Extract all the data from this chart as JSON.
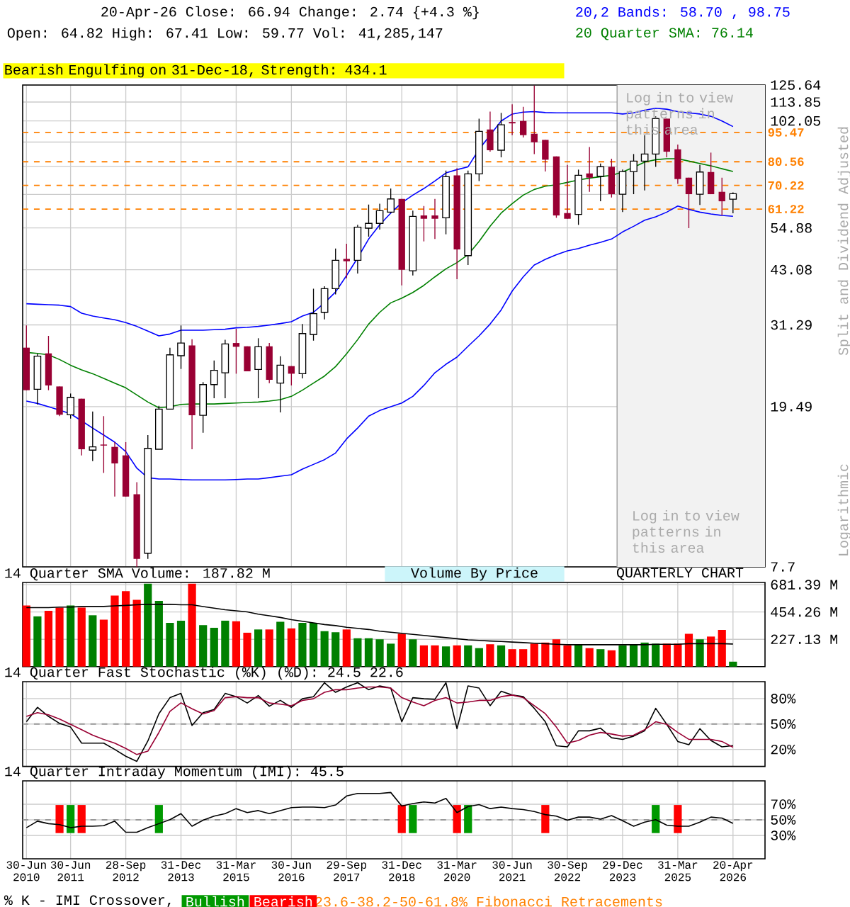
{
  "chart_data": [
    {
      "type": "candlestick",
      "title": "20-Apr-26  Close: 66.94  Change: 2.74 {+4.3 %}",
      "subtitle": "Open: 64.82  High: 67.41  Low: 59.77  Vol: 41,285,147",
      "ylabel": "Split and Dividend Adjusted",
      "annotations": [
        "Bearish Engulfing on 31-Dec-18, Strength: 434.1",
        "Log in to view patterns in this area",
        "Logarithmic",
        "Volume By Price",
        "QUARTERLY CHART",
        "23.6-38.2-50-61.8% Fibonacci Retracements"
      ],
      "categories": [
        "30-Jun 2010",
        null,
        null,
        null,
        "30-Jun 2011",
        null,
        null,
        null,
        null,
        "28-Sep 2012",
        null,
        null,
        null,
        null,
        "31-Dec 2013",
        null,
        null,
        null,
        null,
        "31-Mar 2015",
        null,
        null,
        null,
        null,
        "30-Jun 2016",
        null,
        null,
        null,
        null,
        "29-Sep 2017",
        null,
        null,
        null,
        null,
        "31-Dec 2018",
        null,
        null,
        null,
        null,
        "31-Mar 2020",
        null,
        null,
        null,
        null,
        "30-Jun 2021",
        null,
        null,
        null,
        null,
        "30-Sep 2022",
        null,
        null,
        null,
        null,
        "29-Dec 2023",
        null,
        null,
        null,
        null,
        "31-Mar 2025",
        null,
        null,
        null,
        null,
        "20-Apr 2026"
      ],
      "ohlc": [
        [
          27.42,
          31.18,
          21.43,
          21.43
        ],
        [
          21.55,
          26.46,
          19.74,
          26.1
        ],
        [
          26.53,
          29.36,
          21.43,
          22.03
        ],
        [
          21.9,
          21.9,
          18.44,
          18.59
        ],
        [
          18.59,
          21.02,
          18.18,
          20.56
        ],
        [
          20.4,
          20.4,
          14.69,
          15.22
        ],
        [
          15.14,
          18.94,
          14.21,
          15.43
        ],
        [
          15.64,
          18.44,
          13.27,
          15.55
        ],
        [
          15.43,
          15.86,
          11.57,
          14.02
        ],
        [
          14.69,
          15.86,
          11.57,
          11.57
        ],
        [
          11.73,
          12.57,
          7.7,
          8.06
        ],
        [
          8.33,
          16.52,
          8.06,
          15.3
        ],
        [
          15.22,
          19.58,
          15.22,
          19.21
        ],
        [
          19.21,
          27.42,
          19.21,
          26.31
        ],
        [
          26.17,
          31.18,
          24.24,
          28.17
        ],
        [
          27.79,
          28.8,
          15.22,
          18.53
        ],
        [
          18.53,
          22.45,
          16.75,
          22.14
        ],
        [
          22.14,
          25.46,
          20.46,
          24.04
        ],
        [
          23.71,
          28.72,
          20.46,
          28.02
        ],
        [
          28.17,
          30.59,
          23.58,
          27.56
        ],
        [
          27.64,
          27.64,
          23.91,
          23.91
        ],
        [
          24.17,
          28.96,
          20.46,
          27.56
        ],
        [
          27.64,
          28.17,
          22.33,
          22.76
        ],
        [
          22.33,
          26.1,
          18.84,
          24.77
        ],
        [
          24.64,
          24.64,
          22.03,
          23.58
        ],
        [
          23.58,
          31.44,
          22.95,
          29.76
        ],
        [
          29.6,
          38.59,
          28.56,
          33.39
        ],
        [
          33.66,
          39.13,
          32.31,
          38.59
        ],
        [
          38.59,
          48.71,
          37.35,
          45.49
        ],
        [
          45.87,
          50.07,
          40.99,
          45.25
        ],
        [
          45.49,
          55.87,
          42.13,
          55.11
        ],
        [
          54.81,
          62.84,
          52.17,
          56.34
        ],
        [
          56.34,
          63.18,
          54.36,
          60.65
        ],
        [
          60.15,
          68.97,
          59.82,
          64.94
        ],
        [
          64.94,
          64.94,
          39.35,
          43.06
        ],
        [
          42.82,
          60.65,
          41.67,
          58.68
        ],
        [
          59.0,
          62.32,
          50.76,
          57.88
        ],
        [
          59.0,
          64.94,
          51.46,
          57.88
        ],
        [
          58.2,
          76.53,
          52.89,
          73.86
        ],
        [
          74.46,
          77.58,
          40.77,
          48.44
        ],
        [
          46.75,
          76.53,
          44.26,
          75.07
        ],
        [
          75.07,
          103.4,
          72.05,
          96.04
        ],
        [
          97.1,
          107.7,
          85.38,
          86.09
        ],
        [
          86.09,
          106.9,
          82.62,
          99.79
        ],
        [
          101.4,
          112.3,
          93.96,
          100.6
        ],
        [
          102.0,
          110.7,
          92.69,
          93.96
        ],
        [
          94.74,
          125.3,
          84.22,
          90.18
        ],
        [
          91.42,
          91.42,
          76.11,
          81.5
        ],
        [
          83.07,
          83.07,
          58.2,
          59.0
        ],
        [
          59.82,
          79.08,
          57.88,
          57.88
        ],
        [
          59.33,
          76.95,
          55.87,
          74.46
        ],
        [
          75.27,
          87.75,
          67.66,
          73.45
        ],
        [
          74.05,
          79.73,
          64.05,
          78.21
        ],
        [
          78.21,
          81.95,
          65.47,
          66.74
        ],
        [
          66.74,
          76.95,
          60.15,
          76.11
        ],
        [
          76.11,
          84.22,
          66.74,
          80.83
        ],
        [
          80.83,
          93.96,
          68.21,
          84.22
        ],
        [
          84.22,
          104.8,
          78.21,
          103.4
        ],
        [
          103.4,
          103.4,
          82.62,
          85.38
        ],
        [
          86.55,
          88.96,
          70.88,
          72.85
        ],
        [
          73.45,
          73.45,
          54.81,
          66.74
        ],
        [
          66.74,
          79.08,
          62.67,
          75.89
        ],
        [
          75.89,
          84.92,
          66.74,
          66.74
        ],
        [
          67.66,
          73.45,
          59.0,
          64.05
        ],
        [
          64.82,
          67.41,
          59.77,
          66.94
        ]
      ],
      "series": [
        {
          "type": "line",
          "name": "20,2 Bands: 58.70 , 98.75",
          "color": "#0000ff",
          "values": [
            35.37,
            35.27,
            35.18,
            35.08,
            34.8,
            33.48,
            32.94,
            32.58,
            32.23,
            31.7,
            31.02,
            30.18,
            29.36,
            29.68,
            30.35,
            30.35,
            30.35,
            30.43,
            30.51,
            30.76,
            30.85,
            31.02,
            31.27,
            31.53,
            31.88,
            32.94,
            33.66,
            35.56,
            37.86,
            41.67,
            46.12,
            51.46,
            55.87,
            59.82,
            63.53,
            66.38,
            68.97,
            72.05,
            75.48,
            76.95,
            78.21,
            86.55,
            93.96,
            102.0,
            106.2,
            107.4,
            107.7,
            107.1,
            106.9,
            106.9,
            106.9,
            106.9,
            106.9,
            106.9,
            106.2,
            106.9,
            108.6,
            109.8,
            109.2,
            107.7,
            106.9,
            106.2,
            104.8,
            102.0,
            98.75
          ]
        },
        {
          "type": "line",
          "color": "#0000ff",
          "values": [
            20.12,
            19.85,
            19.47,
            19.1,
            18.69,
            17.94,
            17.21,
            16.52,
            15.86,
            15.01,
            13.64,
            12.91,
            12.81,
            12.81,
            12.77,
            12.74,
            12.74,
            12.74,
            12.74,
            12.77,
            12.81,
            12.81,
            12.91,
            13.02,
            13.13,
            13.57,
            13.94,
            14.33,
            14.89,
            16.16,
            17.21,
            18.44,
            19.05,
            19.47,
            19.9,
            20.68,
            22.03,
            23.71,
            24.91,
            25.96,
            27.64,
            29.36,
            31.44,
            34.12,
            38.07,
            41.33,
            44.26,
            45.74,
            47.0,
            48.05,
            48.71,
            49.66,
            50.48,
            51.46,
            53.62,
            55.41,
            57.4,
            58.51,
            60.15,
            62.32,
            61.12,
            60.15,
            59.49,
            59.0,
            58.7
          ]
        },
        {
          "type": "line",
          "name": "20 Quarter SMA: 76.14",
          "color": "#008000",
          "values": [
            26.67,
            26.53,
            26.31,
            25.6,
            24.77,
            24.11,
            23.58,
            22.95,
            22.33,
            21.73,
            20.85,
            20.01,
            19.36,
            19.47,
            19.74,
            19.79,
            19.79,
            19.79,
            19.85,
            19.9,
            19.96,
            20.01,
            20.12,
            20.29,
            20.68,
            21.43,
            22.33,
            23.26,
            24.57,
            26.46,
            28.72,
            31.44,
            33.66,
            35.56,
            36.54,
            37.76,
            39.35,
            41.33,
            43.3,
            44.88,
            47.0,
            50.76,
            55.41,
            59.82,
            63.18,
            66.38,
            68.6,
            69.92,
            70.5,
            71.47,
            72.45,
            73.26,
            73.86,
            74.46,
            75.89,
            78.0,
            80.39,
            81.5,
            81.95,
            81.95,
            80.83,
            79.73,
            78.64,
            77.36,
            76.14
          ]
        }
      ],
      "log": true,
      "ylim": [
        7.7,
        125.64
      ],
      "yticks": [
        7.7,
        19.49,
        31.29,
        43.08,
        54.88,
        {
          "value": 66.67,
          "label": null
        },
        {
          "value": 78.47,
          "label": null
        },
        {
          "value": 90.26,
          "label": null
        },
        102.05,
        113.85,
        125.64
      ],
      "grid": true,
      "tick_labels": "y",
      "ref_lines": [
        {
          "axis": "y",
          "value": 95.47,
          "label": "95.47",
          "color": "#ff8000",
          "line_style": "dashed"
        },
        {
          "axis": "y",
          "value": 80.56,
          "label": "80.56",
          "color": "#ff8000",
          "line_style": "dashed"
        },
        {
          "axis": "y",
          "value": 70.22,
          "label": "70.22",
          "color": "#ff8000",
          "line_style": "dashed"
        },
        {
          "axis": "y",
          "value": 61.22,
          "label": "61.22",
          "color": "#ff8000",
          "line_style": "dashed"
        }
      ],
      "bands": [
        {
          "axis": "x",
          "from": "29-Dec 2023",
          "to": "20-Apr 2026",
          "label": "Log in to view patterns in this area",
          "color": "#f2f2f2"
        }
      ]
    },
    {
      "type": "bar",
      "title": "14 Quarter SMA Volume: 187.82 M",
      "categories": [
        "30-Jun 2010",
        null,
        null,
        null,
        "30-Jun 2011",
        null,
        null,
        null,
        null,
        "28-Sep 2012",
        null,
        null,
        null,
        null,
        "31-Dec 2013",
        null,
        null,
        null,
        null,
        "31-Mar 2015",
        null,
        null,
        null,
        null,
        "30-Jun 2016",
        null,
        null,
        null,
        null,
        "29-Sep 2017",
        null,
        null,
        null,
        null,
        "31-Dec 2018",
        null,
        null,
        null,
        null,
        "31-Mar 2020",
        null,
        null,
        null,
        null,
        "30-Jun 2021",
        null,
        null,
        null,
        null,
        "30-Sep 2022",
        null,
        null,
        null,
        null,
        "29-Dec 2023",
        null,
        null,
        null,
        null,
        "31-Mar 2025",
        null,
        null,
        null,
        null,
        "20-Apr 2026"
      ],
      "series": [
        {
          "type": "bar",
          "colors": [
            "#ff0000",
            "#008000",
            "#ff0000",
            "#ff0000",
            "#008000",
            "#ff0000",
            "#008000",
            "#ff0000",
            "#ff0000",
            "#ff0000",
            "#ff0000",
            "#008000",
            "#008000",
            "#008000",
            "#008000",
            "#ff0000",
            "#008000",
            "#008000",
            "#008000",
            "#ff0000",
            "#ff0000",
            "#008000",
            "#ff0000",
            "#008000",
            "#ff0000",
            "#008000",
            "#008000",
            "#008000",
            "#008000",
            "#ff0000",
            "#008000",
            "#008000",
            "#008000",
            "#008000",
            "#ff0000",
            "#008000",
            "#ff0000",
            "#ff0000",
            "#008000",
            "#ff0000",
            "#008000",
            "#008000",
            "#ff0000",
            "#008000",
            "#ff0000",
            "#ff0000",
            "#ff0000",
            "#ff0000",
            "#ff0000",
            "#ff0000",
            "#008000",
            "#ff0000",
            "#008000",
            "#ff0000",
            "#008000",
            "#008000",
            "#008000",
            "#008000",
            "#ff0000",
            "#ff0000",
            "#ff0000",
            "#008000",
            "#ff0000",
            "#ff0000",
            "#008000"
          ],
          "values": [
            509,
            418,
            464,
            491,
            509,
            491,
            427,
            391,
            591,
            628,
            555,
            690,
            546,
            364,
            382,
            690,
            345,
            323,
            382,
            377,
            282,
            309,
            309,
            373,
            318,
            364,
            364,
            295,
            286,
            309,
            236,
            236,
            227,
            191,
            273,
            227,
            177,
            177,
            168,
            177,
            177,
            154,
            186,
            177,
            145,
            145,
            191,
            200,
            227,
            177,
            186,
            154,
            145,
            136,
            177,
            186,
            200,
            191,
            191,
            191,
            273,
            227,
            250,
            305,
            41.29
          ]
        },
        {
          "type": "line",
          "color": "#000000",
          "values": [
            491,
            491,
            491,
            495,
            495,
            500,
            500,
            500,
            505,
            509,
            514,
            518,
            518,
            518,
            514,
            514,
            500,
            486,
            473,
            464,
            455,
            436,
            423,
            409,
            391,
            377,
            364,
            350,
            341,
            327,
            318,
            309,
            295,
            286,
            277,
            268,
            259,
            250,
            241,
            232,
            223,
            218,
            213,
            209,
            204,
            200,
            195,
            191,
            186,
            182,
            182,
            182,
            182,
            182,
            182,
            182,
            182,
            186,
            186,
            186,
            191,
            191,
            191,
            191,
            187.82
          ]
        }
      ],
      "ylim": [
        0,
        700
      ],
      "yticks": [
        {
          "value": 227.13,
          "label": "227.13 M"
        },
        {
          "value": 454.26,
          "label": "454.26 M"
        },
        {
          "value": 681.39,
          "label": "681.39 M"
        }
      ],
      "grid": true,
      "tick_labels": "y"
    },
    {
      "type": "line",
      "title": "14 Quarter Fast Stochastic (%K) (%D): 24.5  22.6",
      "categories": [
        "30-Jun 2010",
        null,
        null,
        null,
        "30-Jun 2011",
        null,
        null,
        null,
        null,
        "28-Sep 2012",
        null,
        null,
        null,
        null,
        "31-Dec 2013",
        null,
        null,
        null,
        null,
        "31-Mar 2015",
        null,
        null,
        null,
        null,
        "30-Jun 2016",
        null,
        null,
        null,
        null,
        "29-Sep 2017",
        null,
        null,
        null,
        null,
        "31-Dec 2018",
        null,
        null,
        null,
        null,
        "31-Mar 2020",
        null,
        null,
        null,
        null,
        "30-Jun 2021",
        null,
        null,
        null,
        null,
        "30-Sep 2022",
        null,
        null,
        null,
        null,
        "29-Dec 2023",
        null,
        null,
        null,
        null,
        "31-Mar 2025",
        null,
        null,
        null,
        null,
        "20-Apr 2026"
      ],
      "series": [
        {
          "color": "#000000",
          "values": [
            52.7,
            69.7,
            59.0,
            50.8,
            46.4,
            27.5,
            27.5,
            27.5,
            20,
            12,
            6,
            30,
            62.2,
            81.1,
            86.1,
            48.3,
            63.4,
            67.2,
            86.1,
            82.3,
            74.8,
            83.6,
            71.0,
            77.9,
            69.7,
            79.8,
            82.3,
            98.7,
            87.4,
            93.7,
            98.7,
            90.5,
            95.0,
            92.4,
            52.7,
            81.1,
            79.8,
            79.2,
            98.7,
            44.5,
            95.0,
            92.4,
            71.6,
            88.7,
            84.2,
            82.3,
            68.5,
            52.7,
            24.3,
            23.1,
            42.0,
            42.0,
            45.1,
            33.8,
            31.9,
            35.7,
            42.0,
            68.5,
            49.6,
            29.4,
            25.6,
            44.5,
            30.6,
            23.1,
            24.5
          ]
        },
        {
          "color": "#990033",
          "values": [
            59.0,
            63.4,
            60.9,
            55.9,
            49.6,
            43.3,
            36.9,
            31.9,
            27.5,
            21.2,
            14,
            18,
            40,
            65,
            75,
            68,
            62,
            66,
            81.1,
            82.3,
            81.1,
            81.1,
            74.8,
            73.5,
            71.6,
            77.9,
            79.8,
            87.4,
            90.5,
            90.5,
            92.4,
            93.7,
            93.7,
            92.4,
            81.1,
            76.0,
            71.6,
            77.9,
            81.1,
            74.8,
            76.0,
            77.9,
            77.9,
            82.3,
            84.2,
            81.1,
            71.6,
            62.2,
            46.4,
            27.5,
            30.6,
            36.9,
            40.1,
            38.2,
            35.7,
            36.9,
            43.3,
            52.7,
            49.6,
            40.1,
            31.9,
            31.9,
            31.9,
            29.4,
            22.6
          ]
        }
      ],
      "ylim": [
        0,
        100
      ],
      "yticks": [
        {
          "value": 20,
          "label": "20%"
        },
        {
          "value": 50,
          "label": "50%"
        },
        {
          "value": 80,
          "label": "80%"
        }
      ],
      "grid": true,
      "tick_labels": "y",
      "ref_lines": [
        {
          "axis": "y",
          "value": 50,
          "color": "#999999",
          "line_style": "dashed"
        }
      ]
    },
    {
      "type": "line",
      "title": "14 Quarter Intraday Momentum (IMI): 45.5",
      "categories": [
        "30-Jun 2010",
        null,
        null,
        null,
        "30-Jun 2011",
        null,
        null,
        null,
        null,
        "28-Sep 2012",
        null,
        null,
        null,
        null,
        "31-Dec 2013",
        null,
        null,
        null,
        null,
        "31-Mar 2015",
        null,
        null,
        null,
        null,
        "30-Jun 2016",
        null,
        null,
        null,
        null,
        "29-Sep 2017",
        null,
        null,
        null,
        null,
        "31-Dec 2018",
        null,
        null,
        null,
        null,
        "31-Mar 2020",
        null,
        null,
        null,
        null,
        "30-Jun 2021",
        null,
        null,
        null,
        null,
        "30-Sep 2022",
        null,
        null,
        null,
        null,
        "29-Dec 2023",
        null,
        null,
        null,
        null,
        "31-Mar 2025",
        null,
        null,
        null,
        null,
        "20-Apr 2026"
      ],
      "series": [
        {
          "type": "bar",
          "name": "Bullish",
          "color": "#009900",
          "base": [
            null,
            null,
            null,
            null,
            33,
            null,
            null,
            null,
            null,
            null,
            null,
            null,
            33,
            null,
            null,
            null,
            null,
            null,
            null,
            null,
            null,
            null,
            null,
            null,
            null,
            null,
            null,
            null,
            null,
            null,
            null,
            null,
            null,
            null,
            null,
            33,
            null,
            null,
            null,
            null,
            33,
            null,
            null,
            null,
            null,
            null,
            null,
            null,
            null,
            null,
            null,
            null,
            null,
            null,
            null,
            null,
            null,
            33,
            null,
            null,
            null,
            null,
            null,
            null,
            null
          ],
          "values": [
            null,
            null,
            null,
            null,
            36,
            null,
            null,
            null,
            null,
            null,
            null,
            null,
            36,
            null,
            null,
            null,
            null,
            null,
            null,
            null,
            null,
            null,
            null,
            null,
            null,
            null,
            null,
            null,
            null,
            null,
            null,
            null,
            null,
            null,
            null,
            36,
            null,
            null,
            null,
            null,
            36,
            null,
            null,
            null,
            null,
            null,
            null,
            null,
            null,
            null,
            null,
            null,
            null,
            null,
            null,
            null,
            null,
            36,
            null,
            null,
            null,
            null,
            null,
            null,
            null
          ]
        },
        {
          "type": "bar",
          "name": "Bearish",
          "color": "#ff0000",
          "base": [
            null,
            null,
            null,
            33,
            null,
            33,
            null,
            null,
            null,
            null,
            null,
            null,
            null,
            null,
            null,
            null,
            null,
            null,
            null,
            null,
            null,
            null,
            null,
            null,
            null,
            null,
            null,
            null,
            null,
            null,
            null,
            null,
            null,
            null,
            33,
            null,
            null,
            null,
            null,
            33,
            null,
            null,
            null,
            null,
            null,
            null,
            null,
            33,
            null,
            null,
            null,
            null,
            null,
            null,
            null,
            null,
            null,
            null,
            null,
            33,
            null,
            null,
            null,
            null,
            null
          ],
          "values": [
            null,
            null,
            null,
            36,
            null,
            36,
            null,
            null,
            null,
            null,
            null,
            null,
            null,
            null,
            null,
            null,
            null,
            null,
            null,
            null,
            null,
            null,
            null,
            null,
            null,
            null,
            null,
            null,
            null,
            null,
            null,
            null,
            null,
            null,
            36,
            null,
            null,
            null,
            null,
            36,
            null,
            null,
            null,
            null,
            null,
            null,
            null,
            36,
            null,
            null,
            null,
            null,
            null,
            null,
            null,
            null,
            null,
            null,
            null,
            36,
            null,
            null,
            null,
            null,
            null
          ]
        },
        {
          "type": "line",
          "color": "#000000",
          "values": [
            39.9,
            48.3,
            45.1,
            43.8,
            39.9,
            41.8,
            41.8,
            42.5,
            48.3,
            34.1,
            34.1,
            39.9,
            45.1,
            50.2,
            58.0,
            41.8,
            49.6,
            54.8,
            58.0,
            64.4,
            59.3,
            61.9,
            58.0,
            61.9,
            65.7,
            66.4,
            66.4,
            65.7,
            69.0,
            80.6,
            83.8,
            83.8,
            83.8,
            85.1,
            67.7,
            70.9,
            72.9,
            71.6,
            77.4,
            59.3,
            67.0,
            69.6,
            64.4,
            66.4,
            64.4,
            63.2,
            60.6,
            56.7,
            54.8,
            49.6,
            53.5,
            53.5,
            50.9,
            55.4,
            48.9,
            41.8,
            47.0,
            50.2,
            43.1,
            41.8,
            41.8,
            47.0,
            53.5,
            52.2,
            45.5
          ]
        }
      ],
      "ylim": [
        0,
        100
      ],
      "yticks": [
        {
          "value": 30,
          "label": "30%"
        },
        {
          "value": 50,
          "label": "50%"
        },
        {
          "value": 70,
          "label": "70%"
        }
      ],
      "grid": true,
      "legend": "bottom",
      "ref_lines": [
        {
          "axis": "y",
          "value": 50,
          "color": "#999999",
          "line_style": "dashed"
        }
      ],
      "annotations": [
        "% K - IMI Crossover,"
      ]
    }
  ]
}
